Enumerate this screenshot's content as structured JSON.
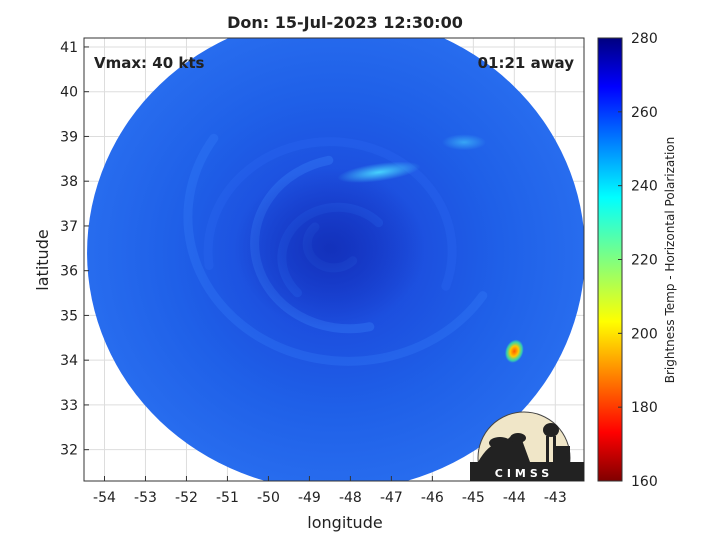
{
  "chart_data": {
    "type": "heatmap",
    "title": "Don: 15-Jul-2023 12:30:00",
    "xlabel": "longitude",
    "ylabel": "latitude",
    "xlim": [
      -54.5,
      -42.3
    ],
    "ylim": [
      31.3,
      41.2
    ],
    "xticks": [
      -54,
      -53,
      -52,
      -51,
      -50,
      -49,
      -48,
      -47,
      -46,
      -45,
      -44,
      -43
    ],
    "yticks": [
      32,
      33,
      34,
      35,
      36,
      37,
      38,
      39,
      40,
      41
    ],
    "grid": true,
    "annotations": {
      "vmax": "Vmax: 40 kts",
      "time_away": "01:21 away"
    },
    "colorbar": {
      "label": "Brightness Temp - Horizontal Polarization",
      "range": [
        160,
        280
      ],
      "ticks": [
        160,
        180,
        200,
        220,
        240,
        260,
        280
      ],
      "colormap": "jet"
    },
    "swath": {
      "center_lon": -48.35,
      "center_lat": 36.4,
      "background_value": 255,
      "features": [
        {
          "name": "storm-center",
          "lon": -48.5,
          "lat": 36.5,
          "value": 268
        },
        {
          "name": "warm-band",
          "lon": -47.3,
          "lat": 38.2,
          "value": 242
        },
        {
          "name": "hot-spot",
          "lon": -44.0,
          "lat": 34.2,
          "value": 200
        }
      ]
    }
  },
  "logo": {
    "text": "CIMSS"
  },
  "colors": {
    "background": "#ffffff",
    "grid": "#dddddd",
    "axis": "#333333",
    "swath_base": "#1f5ee6"
  }
}
